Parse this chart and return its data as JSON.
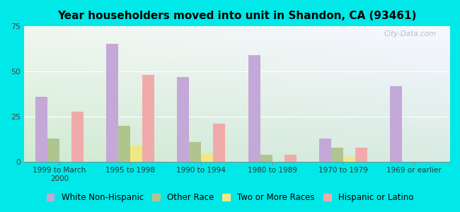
{
  "title": "Year householders moved into unit in Shandon, CA (93461)",
  "categories": [
    "1999 to March\n2000",
    "1995 to 1998",
    "1990 to 1994",
    "1980 to 1989",
    "1970 to 1979",
    "1969 or earlier"
  ],
  "series": {
    "White Non-Hispanic": [
      36,
      65,
      47,
      59,
      13,
      42
    ],
    "Other Race": [
      13,
      20,
      11,
      4,
      8,
      0
    ],
    "Two or More Races": [
      0,
      9,
      5,
      0,
      3,
      0
    ],
    "Hispanic or Latino": [
      28,
      48,
      21,
      4,
      8,
      0
    ]
  },
  "colors": {
    "White Non-Hispanic": "#c4a8d8",
    "Other Race": "#b0c490",
    "Two or More Races": "#f0e880",
    "Hispanic or Latino": "#f0aaaa"
  },
  "ylim": [
    0,
    75
  ],
  "yticks": [
    0,
    25,
    50,
    75
  ],
  "background_color": "#00e8e8",
  "watermark": "City-Data.com",
  "bar_width": 0.17,
  "legend_fontsize": 8.5,
  "title_fontsize": 11
}
